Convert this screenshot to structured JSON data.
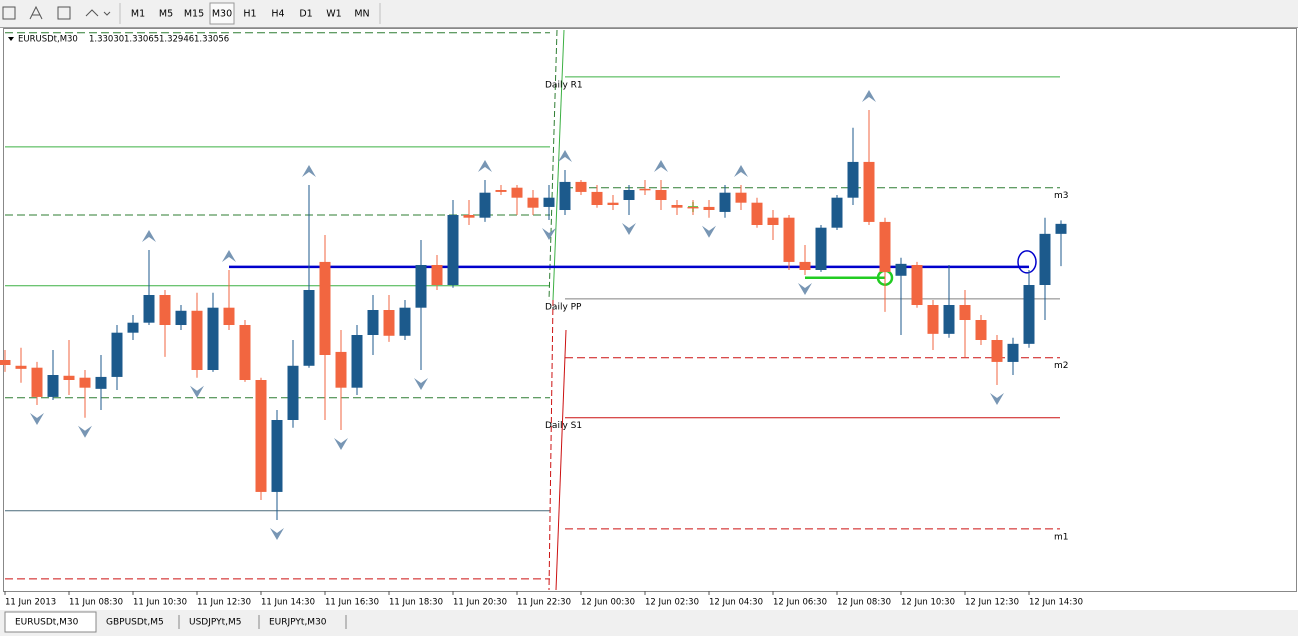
{
  "toolbar": {
    "timeframes": [
      "M1",
      "M5",
      "M15",
      "M30",
      "H1",
      "H4",
      "D1",
      "W1",
      "MN"
    ],
    "active": "M30"
  },
  "header": {
    "symbol": "EURUSDt,M30",
    "ohlc_labels": [
      "1.33030",
      "1.33065",
      "1.32946",
      "1.33056"
    ]
  },
  "chart_data": {
    "type": "candlestick",
    "categories": [
      "11 Jun 2013",
      null,
      null,
      null,
      "11 Jun 08:30",
      null,
      null,
      null,
      "11 Jun 10:30",
      null,
      null,
      null,
      "11 Jun 12:30",
      null,
      null,
      null,
      "11 Jun 14:30",
      null,
      null,
      null,
      "11 Jun 16:30",
      null,
      null,
      null,
      "11 Jun 18:30",
      null,
      null,
      null,
      "11 Jun 20:30",
      null,
      null,
      null,
      "11 Jun 22:30",
      null,
      null,
      null,
      "12 Jun 00:30",
      null,
      null,
      null,
      "12 Jun 02:30",
      null,
      null,
      null,
      "12 Jun 04:30",
      null,
      null,
      null,
      "12 Jun 06:30",
      null,
      null,
      null,
      "12 Jun 08:30",
      null,
      null,
      null,
      "12 Jun 10:30",
      null,
      null,
      null,
      "12 Jun 12:30",
      null,
      null,
      null,
      "12 Jun 14:30",
      null,
      null
    ],
    "candles": {
      "open": [
        1.32702,
        1.32687,
        1.32682,
        1.32606,
        1.32661,
        1.32656,
        1.32627,
        1.32658,
        1.32773,
        1.32799,
        1.32871,
        1.32793,
        1.3283,
        1.32676,
        1.32838,
        1.32793,
        1.3265,
        1.32359,
        1.32546,
        1.32687,
        1.32957,
        1.32723,
        1.3263,
        1.32767,
        1.32832,
        1.32765,
        1.32838,
        1.32949,
        1.32897,
        1.33079,
        1.33072,
        1.33144,
        1.3315,
        1.33124,
        1.331,
        1.33092,
        1.33165,
        1.33139,
        1.33111,
        1.33118,
        1.33147,
        1.33144,
        1.33105,
        1.331,
        1.331,
        1.33087,
        1.33137,
        1.33111,
        1.33072,
        1.33072,
        1.32957,
        1.32936,
        1.33046,
        1.33124,
        1.33217,
        1.33061,
        1.32921,
        1.32949,
        1.32845,
        1.3277,
        1.32845,
        1.32806,
        1.32754,
        1.32697,
        1.32744,
        1.32897,
        1.3303
      ],
      "high": [
        1.32728,
        1.32734,
        1.32697,
        1.32728,
        1.32754,
        1.32676,
        1.32715,
        1.32793,
        1.32819,
        1.32988,
        1.32884,
        1.32845,
        1.32877,
        1.32877,
        1.32936,
        1.32806,
        1.32656,
        1.32572,
        1.32754,
        1.33157,
        1.33027,
        1.3278,
        1.32793,
        1.32871,
        1.32871,
        1.32858,
        1.33014,
        1.32975,
        1.33118,
        1.33118,
        1.3317,
        1.33157,
        1.33157,
        1.33144,
        1.33157,
        1.33196,
        1.3317,
        1.33157,
        1.33131,
        1.33157,
        1.3317,
        1.3317,
        1.33118,
        1.33118,
        1.33118,
        1.33157,
        1.33157,
        1.33124,
        1.33092,
        1.33079,
        1.33001,
        1.33053,
        1.33131,
        1.33306,
        1.33352,
        1.33072,
        1.32968,
        1.32957,
        1.32858,
        1.32949,
        1.32884,
        1.32819,
        1.32767,
        1.3276,
        1.32936,
        1.33072,
        1.33065
      ],
      "low": [
        1.32671,
        1.32643,
        1.32585,
        1.32598,
        1.32611,
        1.32552,
        1.32572,
        1.32624,
        1.32754,
        1.32793,
        1.3271,
        1.3278,
        1.32656,
        1.32671,
        1.3278,
        1.32645,
        1.32338,
        1.32286,
        1.32526,
        1.32682,
        1.32546,
        1.3252,
        1.32611,
        1.32715,
        1.32749,
        1.32754,
        1.32676,
        1.32884,
        1.3289,
        1.33053,
        1.33061,
        1.33131,
        1.33079,
        1.33079,
        1.33066,
        1.33079,
        1.33131,
        1.33098,
        1.33092,
        1.33079,
        1.33131,
        1.33092,
        1.33079,
        1.33079,
        1.33072,
        1.33072,
        1.33092,
        1.33046,
        1.33014,
        1.32936,
        1.32923,
        1.32931,
        1.3304,
        1.33105,
        1.33053,
        1.32827,
        1.32767,
        1.32838,
        1.32728,
        1.3276,
        1.32708,
        1.32741,
        1.32637,
        1.32663,
        1.32734,
        1.32806,
        1.32946
      ],
      "close": [
        1.32689,
        1.32679,
        1.32606,
        1.32663,
        1.3265,
        1.3263,
        1.32658,
        1.32773,
        1.32799,
        1.32871,
        1.32793,
        1.3283,
        1.32676,
        1.32838,
        1.32793,
        1.3265,
        1.32359,
        1.32546,
        1.32687,
        1.32884,
        1.32715,
        1.3263,
        1.32767,
        1.32832,
        1.32765,
        1.32838,
        1.32949,
        1.32897,
        1.33079,
        1.33072,
        1.33137,
        1.33139,
        1.33124,
        1.33098,
        1.33124,
        1.33165,
        1.33139,
        1.33105,
        1.33105,
        1.33144,
        1.33144,
        1.33118,
        1.33098,
        1.331,
        1.33092,
        1.33137,
        1.33111,
        1.33053,
        1.33053,
        1.32957,
        1.32936,
        1.33046,
        1.33124,
        1.33217,
        1.33061,
        1.32931,
        1.32952,
        1.32845,
        1.3277,
        1.32845,
        1.32806,
        1.32754,
        1.32697,
        1.32744,
        1.32897,
        1.3303,
        1.33056
      ]
    },
    "up_color": "#1c5a8c",
    "down_color": "#f26640",
    "ylim": [
      1.32104,
      1.3356
    ],
    "levels": [
      {
        "label": "Daily R1",
        "value": 1.33438,
        "color": "#3cb043",
        "style": "solid"
      },
      {
        "label": "m3",
        "value": 1.3315,
        "color": "#2e7d32",
        "style": "dashed"
      },
      {
        "label": "Daily PP",
        "value": 1.32861,
        "color": "#808080",
        "style": "solid"
      },
      {
        "label": "m2",
        "value": 1.32708,
        "color": "#cc1111",
        "style": "dashed"
      },
      {
        "label": "Daily S1",
        "value": 1.32552,
        "color": "#cc1111",
        "style": "solid"
      },
      {
        "label": "m1",
        "value": 1.32263,
        "color": "#cc1111",
        "style": "dashed"
      }
    ],
    "prev_levels": [
      {
        "value": 1.33553,
        "color": "#2e7d32",
        "style": "dashed"
      },
      {
        "value": 1.33256,
        "color": "#3cb043",
        "style": "solid"
      },
      {
        "value": 1.33079,
        "color": "#2e7d32",
        "style": "dashed"
      },
      {
        "value": 1.32895,
        "color": "#3cb043",
        "style": "solid"
      },
      {
        "value": 1.32604,
        "color": "#2e7d32",
        "style": "dashed"
      },
      {
        "value": 1.3231,
        "color": "#4a6a7a",
        "style": "solid"
      },
      {
        "value": 1.32133,
        "color": "#cc1111",
        "style": "dashed"
      }
    ],
    "lines": [
      {
        "value": 1.32944,
        "color": "#0000cc"
      },
      {
        "value": 1.32916,
        "color": "#22cc22"
      }
    ]
  },
  "tabs": [
    "EURUSDt,M30",
    "GBPUSDt,M5",
    "USDJPYt,M5",
    "EURJPYt,M30"
  ],
  "active_tab": "EURUSDt,M30"
}
